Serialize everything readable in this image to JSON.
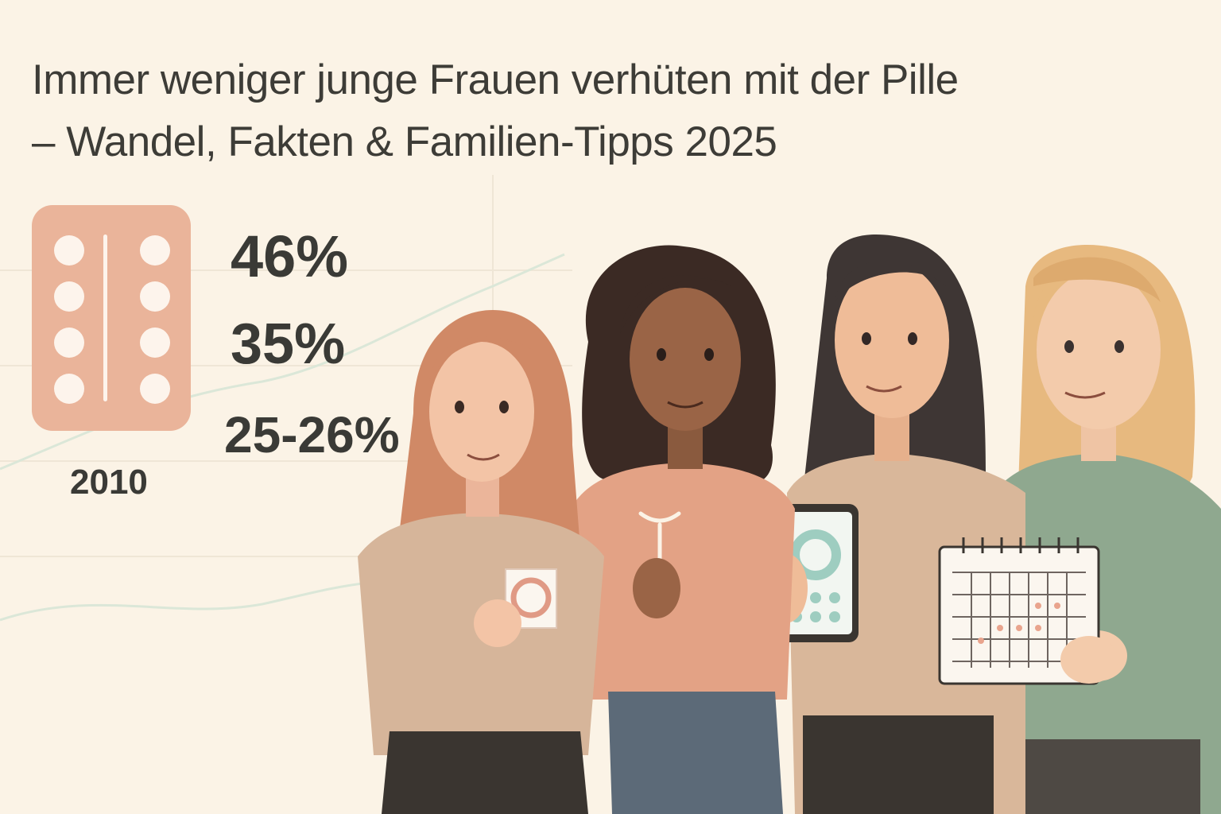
{
  "headline": {
    "line1": "Immer weniger junge Frauen verhüten mit der Pille",
    "line2": "– Wandel, Fakten & Familien-Tipps 2025"
  },
  "stats": {
    "value_1": "46%",
    "value_2": "35%",
    "value_3": "25-26%",
    "year": "2010"
  },
  "illustration": {
    "pill_pack_icon": "pill-blister-pack-icon",
    "items": [
      "condom-icon",
      "iud-icon",
      "cycle-app-phone-icon",
      "calendar-icon"
    ]
  },
  "colors": {
    "background": "#fbf3e6",
    "text": "#3a3a36",
    "pill_pack": "#eab49a",
    "accent_green": "#8fa88f",
    "accent_salmon": "#e0a083"
  }
}
